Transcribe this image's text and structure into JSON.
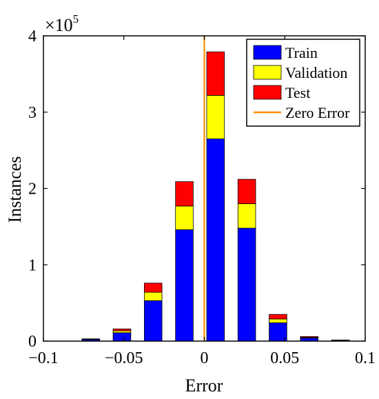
{
  "chart_data": {
    "type": "bar",
    "stacked": true,
    "xlabel": "Error",
    "ylabel": "Instances",
    "y_multiplier_label": "×10",
    "y_multiplier_exponent": "5",
    "xlim": [
      -0.1,
      0.1
    ],
    "ylim": [
      0,
      4
    ],
    "y_unit_multiplier": 100000,
    "x_ticks": [
      -0.1,
      -0.05,
      0,
      0.05,
      0.1
    ],
    "x_tick_labels": [
      "−0.1",
      "−0.05",
      "0",
      "0.05",
      "0.1"
    ],
    "y_ticks": [
      0,
      1,
      2,
      3,
      4
    ],
    "y_tick_labels": [
      "0",
      "1",
      "2",
      "3",
      "4"
    ],
    "bin_width": 0.011,
    "x": [
      -0.0705,
      -0.0512,
      -0.0318,
      -0.0124,
      0.007,
      0.0264,
      0.0458,
      0.0652,
      0.0846
    ],
    "series": [
      {
        "name": "Train",
        "color": "#0000ff",
        "values": [
          0.02,
          0.11,
          0.53,
          1.46,
          2.65,
          1.48,
          0.24,
          0.04,
          0.01
        ]
      },
      {
        "name": "Validation",
        "color": "#ffff00",
        "values": [
          0.005,
          0.025,
          0.11,
          0.31,
          0.57,
          0.32,
          0.05,
          0.008,
          0.003
        ]
      },
      {
        "name": "Test",
        "color": "#ff0000",
        "values": [
          0.005,
          0.025,
          0.12,
          0.32,
          0.57,
          0.32,
          0.06,
          0.012,
          0.002
        ]
      }
    ],
    "reference_line": {
      "name": "Zero Error",
      "x": 0,
      "color": "#ff8c00"
    },
    "legend_position": "top-right",
    "grid": false
  }
}
